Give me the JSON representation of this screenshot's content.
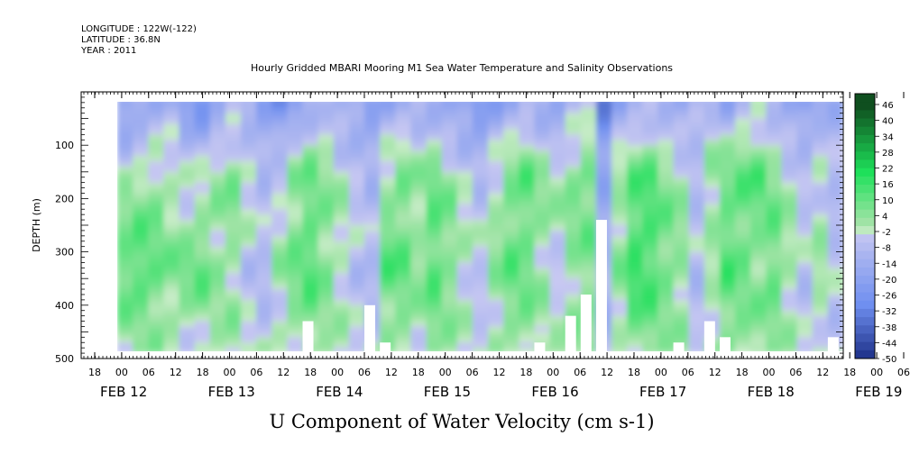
{
  "header": {
    "longitude": "LONGITUDE : 122W(-122)",
    "latitude": "LATITUDE : 36.8N",
    "year": "YEAR : 2011"
  },
  "chart_data": {
    "type": "heatmap",
    "title": "Hourly Gridded MBARI Mooring M1 Sea Water Temperature and Salinity Observations",
    "ylabel": "DEPTH (m)",
    "xlabel": "U Component of Water Velocity (cm s-1)",
    "ylim": [
      500,
      0
    ],
    "y_ticks": [
      100,
      200,
      300,
      400,
      500
    ],
    "x_hour_ticks": [
      "18",
      "00",
      "06",
      "12",
      "18",
      "00",
      "06",
      "12",
      "18",
      "00",
      "06",
      "12",
      "18",
      "00",
      "06",
      "12",
      "18",
      "00",
      "06",
      "12",
      "18",
      "00",
      "06",
      "12",
      "18",
      "00",
      "06",
      "12",
      "18",
      "00",
      "06",
      "12"
    ],
    "x_day_labels": [
      "FEB 12",
      "FEB 13",
      "FEB 14",
      "FEB 15",
      "FEB 16",
      "FEB 17",
      "FEB 18",
      "FEB 19"
    ],
    "colorbar": {
      "labels": [
        "46",
        "40",
        "34",
        "28",
        "22",
        "16",
        "10",
        "4",
        "-2",
        "-8",
        "-14",
        "-20",
        "-26",
        "-32",
        "-38",
        "-44",
        "-50"
      ],
      "range": [
        -50,
        46
      ],
      "colors": {
        "strong_positive": "#0f4f1f",
        "positive": "#1ee05a",
        "near_zero": "#c8ecc8",
        "negative": "#6f8ff0",
        "strong_negative": "#0a1a70"
      }
    },
    "time_columns": [
      {
        "surface": -20,
        "mid": 2,
        "deep": 14,
        "bottom_m": 480
      },
      {
        "surface": -16,
        "mid": 4,
        "deep": 16,
        "bottom_m": 480
      },
      {
        "surface": -14,
        "mid": 6,
        "deep": 12,
        "bottom_m": 480
      },
      {
        "surface": -10,
        "mid": 2,
        "deep": 8,
        "bottom_m": 480
      },
      {
        "surface": -18,
        "mid": -2,
        "deep": 10,
        "bottom_m": 480
      },
      {
        "surface": -22,
        "mid": 0,
        "deep": 12,
        "bottom_m": 480
      },
      {
        "surface": -12,
        "mid": 4,
        "deep": 6,
        "bottom_m": 480
      },
      {
        "surface": -8,
        "mid": 8,
        "deep": 4,
        "bottom_m": 480
      },
      {
        "surface": -14,
        "mid": 2,
        "deep": -4,
        "bottom_m": 480
      },
      {
        "surface": -20,
        "mid": -4,
        "deep": -6,
        "bottom_m": 480
      },
      {
        "surface": -24,
        "mid": -2,
        "deep": 4,
        "bottom_m": 480
      },
      {
        "surface": -18,
        "mid": 6,
        "deep": 10,
        "bottom_m": 480
      },
      {
        "surface": -10,
        "mid": 10,
        "deep": 14,
        "bottom_m": 430
      },
      {
        "surface": -6,
        "mid": 6,
        "deep": 8,
        "bottom_m": 480
      },
      {
        "surface": -12,
        "mid": 2,
        "deep": 2,
        "bottom_m": 480
      },
      {
        "surface": -16,
        "mid": -2,
        "deep": -4,
        "bottom_m": 480
      },
      {
        "surface": -20,
        "mid": -6,
        "deep": -6,
        "bottom_m": 400
      },
      {
        "surface": -14,
        "mid": 4,
        "deep": 14,
        "bottom_m": 470
      },
      {
        "surface": -10,
        "mid": 8,
        "deep": 12,
        "bottom_m": 480
      },
      {
        "surface": -8,
        "mid": 4,
        "deep": 6,
        "bottom_m": 480
      },
      {
        "surface": -12,
        "mid": 10,
        "deep": 14,
        "bottom_m": 480
      },
      {
        "surface": -16,
        "mid": 6,
        "deep": 8,
        "bottom_m": 480
      },
      {
        "surface": -20,
        "mid": 0,
        "deep": 2,
        "bottom_m": 480
      },
      {
        "surface": -24,
        "mid": -4,
        "deep": -2,
        "bottom_m": 480
      },
      {
        "surface": -18,
        "mid": 2,
        "deep": 6,
        "bottom_m": 480
      },
      {
        "surface": -12,
        "mid": 8,
        "deep": 12,
        "bottom_m": 480
      },
      {
        "surface": -8,
        "mid": 12,
        "deep": 10,
        "bottom_m": 480
      },
      {
        "surface": -12,
        "mid": 6,
        "deep": 4,
        "bottom_m": 470
      },
      {
        "surface": -16,
        "mid": 4,
        "deep": -2,
        "bottom_m": 480
      },
      {
        "surface": -10,
        "mid": 8,
        "deep": 6,
        "bottom_m": 420
      },
      {
        "surface": -6,
        "mid": 10,
        "deep": 8,
        "bottom_m": 380
      },
      {
        "surface": -30,
        "mid": -14,
        "deep": -8,
        "bottom_m": 240
      },
      {
        "surface": -14,
        "mid": 4,
        "deep": 6,
        "bottom_m": 480
      },
      {
        "surface": -10,
        "mid": 12,
        "deep": 18,
        "bottom_m": 480
      },
      {
        "surface": -8,
        "mid": 14,
        "deep": 16,
        "bottom_m": 480
      },
      {
        "surface": -12,
        "mid": 8,
        "deep": 10,
        "bottom_m": 480
      },
      {
        "surface": -16,
        "mid": 4,
        "deep": 6,
        "bottom_m": 470
      },
      {
        "surface": -10,
        "mid": -4,
        "deep": -6,
        "bottom_m": 480
      },
      {
        "surface": -8,
        "mid": 6,
        "deep": 2,
        "bottom_m": 430
      },
      {
        "surface": -14,
        "mid": 10,
        "deep": 14,
        "bottom_m": 460
      },
      {
        "surface": -6,
        "mid": 12,
        "deep": 10,
        "bottom_m": 480
      },
      {
        "surface": -4,
        "mid": 14,
        "deep": 6,
        "bottom_m": 480
      },
      {
        "surface": -10,
        "mid": 8,
        "deep": 12,
        "bottom_m": 480
      },
      {
        "surface": -16,
        "mid": 2,
        "deep": 4,
        "bottom_m": 480
      },
      {
        "surface": -20,
        "mid": -2,
        "deep": -4,
        "bottom_m": 480
      },
      {
        "surface": -14,
        "mid": 0,
        "deep": 4,
        "bottom_m": 480
      },
      {
        "surface": -10,
        "mid": -6,
        "deep": -4,
        "bottom_m": 460
      }
    ]
  }
}
